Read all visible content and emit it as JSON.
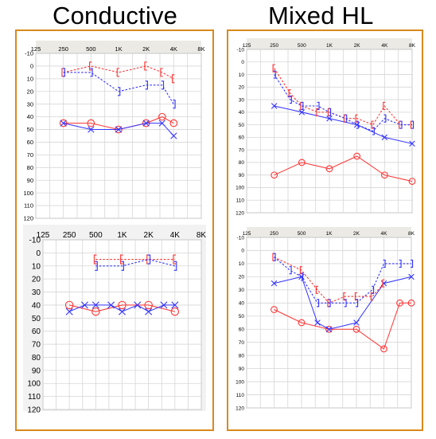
{
  "headings": {
    "left": "Conductive",
    "right": "Mixed HL"
  },
  "colors": {
    "right_ear": "#ff3333",
    "left_ear": "#3333ff",
    "frame": "#d88a1c",
    "grid": "#d6d6d6"
  },
  "legend_symbols": {
    "right_air": "O (red circle)",
    "left_air": "X (blue cross)",
    "right_bone": "[ (red bracket)",
    "left_bone": "] (blue bracket)"
  },
  "chart_data": [
    {
      "type": "line",
      "title": "",
      "x_tick_labels": [
        "125",
        "250",
        "500",
        "1K",
        "2K",
        "4K",
        "8K"
      ],
      "x_log2_positions": [
        0,
        1,
        2,
        3,
        4,
        5,
        6
      ],
      "y_tick_labels": [
        "-10",
        "0",
        "10",
        "20",
        "30",
        "40",
        "50",
        "60",
        "70",
        "80",
        "90",
        "100",
        "110",
        "120"
      ],
      "ylim": [
        -10,
        120
      ],
      "y_inverted": true,
      "series": [
        {
          "ear": "right",
          "kind": "air",
          "points": [
            [
              1,
              45
            ],
            [
              2,
              45
            ],
            [
              3,
              50
            ],
            [
              4,
              45
            ],
            [
              4.58,
              40
            ],
            [
              5,
              45
            ]
          ]
        },
        {
          "ear": "left",
          "kind": "air",
          "points": [
            [
              1,
              45
            ],
            [
              2,
              50
            ],
            [
              3,
              50
            ],
            [
              4,
              45
            ],
            [
              4.58,
              45
            ],
            [
              5,
              55
            ]
          ]
        },
        {
          "ear": "right",
          "kind": "bone",
          "points": [
            [
              1,
              5
            ],
            [
              2,
              0
            ],
            [
              3,
              5
            ],
            [
              4,
              0
            ],
            [
              4.58,
              5
            ],
            [
              5,
              10
            ]
          ]
        },
        {
          "ear": "left",
          "kind": "bone",
          "points": [
            [
              1,
              5
            ],
            [
              2,
              5
            ],
            [
              3,
              20
            ],
            [
              4,
              15
            ],
            [
              4.58,
              15
            ],
            [
              5,
              30
            ]
          ]
        }
      ]
    },
    {
      "type": "line",
      "title": "",
      "x_tick_labels": [
        "125",
        "250",
        "500",
        "1K",
        "2K",
        "4K",
        "8K"
      ],
      "x_log2_positions": [
        0,
        1,
        2,
        3,
        4,
        5,
        6
      ],
      "y_tick_labels": [
        "-10",
        "0",
        "10",
        "20",
        "30",
        "40",
        "50",
        "60",
        "70",
        "80",
        "90",
        "100",
        "110",
        "120"
      ],
      "ylim": [
        -10,
        120
      ],
      "y_inverted": true,
      "series": [
        {
          "ear": "right",
          "kind": "air",
          "points": [
            [
              1,
              90
            ],
            [
              2,
              80
            ],
            [
              3,
              85
            ],
            [
              4,
              75
            ],
            [
              5,
              90
            ],
            [
              6,
              95
            ]
          ]
        },
        {
          "ear": "left",
          "kind": "air",
          "points": [
            [
              1,
              35
            ],
            [
              2,
              40
            ],
            [
              3,
              45
            ],
            [
              4,
              50
            ],
            [
              5,
              60
            ],
            [
              6,
              65
            ]
          ]
        },
        {
          "ear": "right",
          "kind": "bone",
          "points": [
            [
              1,
              5
            ],
            [
              1.58,
              25
            ],
            [
              2,
              35
            ],
            [
              2.58,
              40
            ],
            [
              3,
              40
            ],
            [
              3.58,
              45
            ],
            [
              4,
              45
            ],
            [
              4.58,
              50
            ],
            [
              5,
              35
            ],
            [
              5.58,
              50
            ],
            [
              6,
              50
            ]
          ]
        },
        {
          "ear": "left",
          "kind": "bone",
          "points": [
            [
              1,
              10
            ],
            [
              1.58,
              30
            ],
            [
              2,
              35
            ],
            [
              2.58,
              35
            ],
            [
              3,
              40
            ],
            [
              3.58,
              45
            ],
            [
              4,
              50
            ],
            [
              4.58,
              55
            ],
            [
              5,
              45
            ],
            [
              5.58,
              50
            ],
            [
              6,
              50
            ]
          ]
        }
      ]
    },
    {
      "type": "line",
      "title": "",
      "x_tick_labels": [
        "125",
        "250",
        "500",
        "1K",
        "2K",
        "4K",
        "8K"
      ],
      "x_log2_positions": [
        0,
        1,
        2,
        3,
        4,
        5,
        6
      ],
      "y_tick_labels": [
        "-10",
        "0",
        "10",
        "20",
        "30",
        "40",
        "50",
        "60",
        "70",
        "80",
        "90",
        "100",
        "110",
        "120"
      ],
      "ylim": [
        -10,
        120
      ],
      "y_inverted": true,
      "series": [
        {
          "ear": "right",
          "kind": "air",
          "points": [
            [
              1,
              40
            ],
            [
              2,
              45
            ],
            [
              3,
              40
            ],
            [
              4,
              40
            ],
            [
              5,
              45
            ]
          ]
        },
        {
          "ear": "left",
          "kind": "air",
          "points": [
            [
              1,
              45
            ],
            [
              1.58,
              40
            ],
            [
              2,
              40
            ],
            [
              2.58,
              40
            ],
            [
              3,
              45
            ],
            [
              3.58,
              40
            ],
            [
              4,
              45
            ],
            [
              4.58,
              40
            ],
            [
              5,
              40
            ]
          ]
        },
        {
          "ear": "right",
          "kind": "bone",
          "points": [
            [
              2,
              5
            ],
            [
              3,
              5
            ],
            [
              4,
              5
            ],
            [
              5,
              5
            ]
          ]
        },
        {
          "ear": "left",
          "kind": "bone",
          "points": [
            [
              2,
              10
            ],
            [
              3,
              10
            ],
            [
              4,
              5
            ],
            [
              5,
              10
            ]
          ]
        }
      ]
    },
    {
      "type": "line",
      "title": "",
      "x_tick_labels": [
        "125",
        "250",
        "500",
        "1K",
        "2K",
        "4K",
        "8K"
      ],
      "x_log2_positions": [
        0,
        1,
        2,
        3,
        4,
        5,
        6
      ],
      "y_tick_labels": [
        "-10",
        "0",
        "10",
        "20",
        "30",
        "40",
        "50",
        "60",
        "70",
        "80",
        "90",
        "100",
        "110",
        "120"
      ],
      "ylim": [
        -10,
        120
      ],
      "y_inverted": true,
      "series": [
        {
          "ear": "right",
          "kind": "air",
          "points": [
            [
              1,
              45
            ],
            [
              2,
              55
            ],
            [
              3,
              60
            ],
            [
              4,
              60
            ],
            [
              5,
              75
            ],
            [
              5.58,
              40
            ],
            [
              6,
              40
            ]
          ]
        },
        {
          "ear": "left",
          "kind": "air",
          "points": [
            [
              1,
              25
            ],
            [
              2,
              20
            ],
            [
              2.58,
              55
            ],
            [
              3,
              60
            ],
            [
              4,
              55
            ],
            [
              5,
              25
            ],
            [
              6,
              20
            ]
          ]
        },
        {
          "ear": "right",
          "kind": "bone",
          "points": [
            [
              1,
              5
            ],
            [
              2,
              15
            ],
            [
              2.58,
              30
            ],
            [
              3,
              40
            ],
            [
              3.58,
              35
            ],
            [
              4,
              35
            ],
            [
              4.58,
              35
            ],
            [
              5,
              25
            ]
          ]
        },
        {
          "ear": "left",
          "kind": "bone",
          "points": [
            [
              1,
              5
            ],
            [
              1.58,
              15
            ],
            [
              2,
              20
            ],
            [
              2.58,
              40
            ],
            [
              3,
              40
            ],
            [
              3.58,
              40
            ],
            [
              4,
              40
            ],
            [
              4.58,
              30
            ],
            [
              5,
              10
            ],
            [
              5.58,
              10
            ],
            [
              6,
              10
            ]
          ]
        }
      ]
    }
  ]
}
